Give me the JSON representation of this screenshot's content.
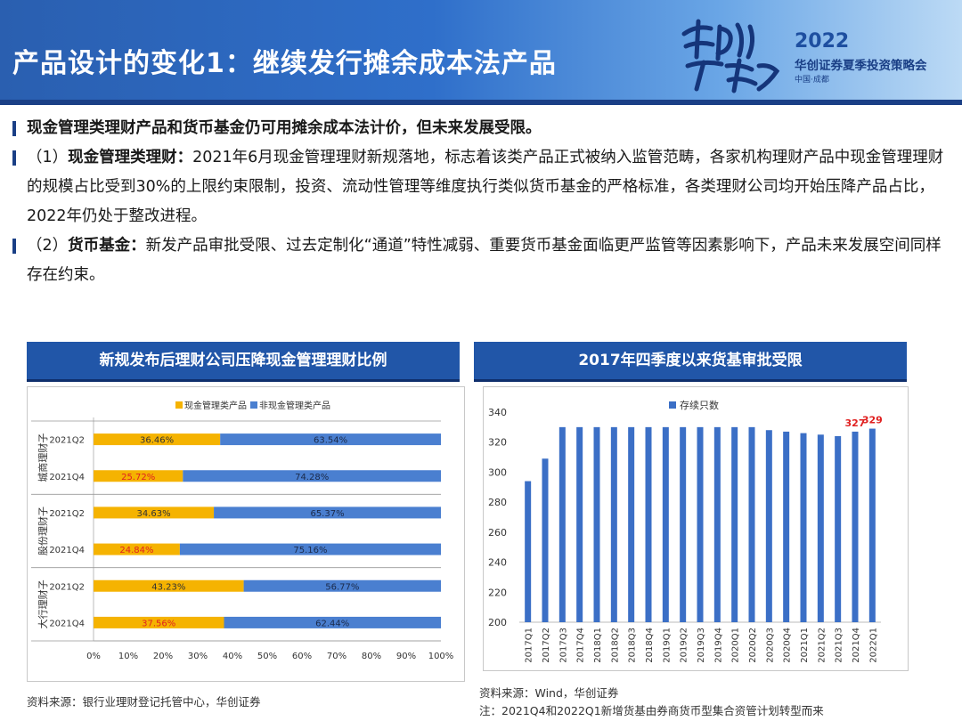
{
  "page": {
    "title": "产品设计的变化1：继续发行摊余成本法产品"
  },
  "brand": {
    "slogan_calligraphy": "千帆竞过万木春",
    "year": "2022",
    "name": "华创证券夏季投资策略会",
    "city": "中国·成都"
  },
  "paragraphs": [
    {
      "lead": "",
      "bold": "现金管理类理财产品和货币基金仍可用摊余成本法计价，但未来发展受限。",
      "text": ""
    },
    {
      "lead": "（1）",
      "bold": "现金管理类理财：",
      "text": "2021年6月现金管理理财新规落地，标志着该类产品正式被纳入监管范畴，各家机构理财产品中现金管理理财的规模占比受到30%的上限约束限制，投资、流动性管理等维度执行类似货币基金的严格标准，各类理财公司均开始压降产品占比，2022年仍处于整改进程。"
    },
    {
      "lead": "（2）",
      "bold": "货币基金：",
      "text": "新发产品审批受限、过去定制化“通道”特性减弱、重要货币基金面临更严监管等因素影响下，产品未来发展空间同样存在约束。"
    }
  ],
  "left_chart": {
    "header": "新规发布后理财公司压降现金管理理财比例",
    "source": "资料来源：银行业理财登记托管中心，华创证券"
  },
  "right_chart": {
    "header": "2017年四季度以来货基审批受限",
    "source": "资料来源：Wind，华创证券",
    "note": "注：2021Q4和2022Q1新增货基由券商货币型集合资管计划转型而来"
  },
  "colors": {
    "cash": "#f5b301",
    "noncash": "#4a7fd0",
    "bar": "#3b6fc6",
    "highlight": "#e02020"
  },
  "chart_data": [
    {
      "type": "bar",
      "orientation": "horizontal",
      "stacked": true,
      "percent": true,
      "legend": [
        "现金管理类产品",
        "非现金管理类产品"
      ],
      "legend_position": "top-left",
      "groups": [
        {
          "name": "城商理财子",
          "rows": [
            {
              "label": "2021Q2",
              "cash": 36.46,
              "noncash": 63.54,
              "cash_label": "36.46%",
              "noncash_label": "63.54%",
              "highlight": false
            },
            {
              "label": "2021Q4",
              "cash": 25.72,
              "noncash": 74.28,
              "cash_label": "25.72%",
              "noncash_label": "74.28%",
              "highlight": true
            }
          ]
        },
        {
          "name": "股份理财子",
          "rows": [
            {
              "label": "2021Q2",
              "cash": 34.63,
              "noncash": 65.37,
              "cash_label": "34.63%",
              "noncash_label": "65.37%",
              "highlight": false
            },
            {
              "label": "2021Q4",
              "cash": 24.84,
              "noncash": 75.16,
              "cash_label": "24.84%",
              "noncash_label": "75.16%",
              "highlight": true
            }
          ]
        },
        {
          "name": "大行理财子",
          "rows": [
            {
              "label": "2021Q2",
              "cash": 43.23,
              "noncash": 56.77,
              "cash_label": "43.23%",
              "noncash_label": "56.77%",
              "highlight": false
            },
            {
              "label": "2021Q4",
              "cash": 37.56,
              "noncash": 62.44,
              "cash_label": "37.56%",
              "noncash_label": "62.44%",
              "highlight": true
            }
          ]
        }
      ],
      "xlim": [
        0,
        100
      ],
      "xticks": [
        "0%",
        "10%",
        "20%",
        "30%",
        "40%",
        "50%",
        "60%",
        "70%",
        "80%",
        "90%",
        "100%"
      ]
    },
    {
      "type": "bar",
      "orientation": "vertical",
      "legend": [
        "存续只数"
      ],
      "legend_position": "top",
      "categories": [
        "2017Q1",
        "2017Q2",
        "2017Q3",
        "2017Q4",
        "2018Q1",
        "2018Q2",
        "2018Q3",
        "2018Q4",
        "2019Q1",
        "2019Q2",
        "2019Q3",
        "2019Q4",
        "2020Q1",
        "2020Q2",
        "2020Q3",
        "2020Q4",
        "2021Q1",
        "2021Q2",
        "2021Q3",
        "2021Q4",
        "2022Q1"
      ],
      "values": [
        294,
        309,
        330,
        330,
        330,
        330,
        330,
        330,
        330,
        330,
        330,
        330,
        330,
        330,
        328,
        327,
        326,
        325,
        324,
        327,
        329
      ],
      "data_labels": [
        {
          "index": 19,
          "text": "327"
        },
        {
          "index": 20,
          "text": "329"
        }
      ],
      "ylim": [
        200,
        340
      ],
      "yticks": [
        "200",
        "220",
        "240",
        "260",
        "280",
        "300",
        "320",
        "340"
      ]
    }
  ]
}
